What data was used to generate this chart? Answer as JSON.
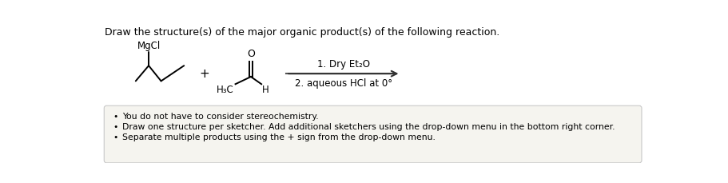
{
  "title": "Draw the structure(s) of the major organic product(s) of the following reaction.",
  "title_fontsize": 9,
  "title_color": "#000000",
  "background_color": "#ffffff",
  "box_color": "#f5f4ef",
  "box_edge_color": "#c8c8c8",
  "bullet_points": [
    "You do not have to consider stereochemistry.",
    "Draw one structure per sketcher. Add additional sketchers using the drop-down menu in the bottom right corner.",
    "Separate multiple products using the + sign from the drop-down menu."
  ],
  "bullet_fontsize": 7.8,
  "reagent1_label": "1. Dry Et₂O",
  "reagent2_label": "2. aqueous HCl at 0°",
  "plus_sign": "+",
  "MgCl_label": "MgCl",
  "H3C_label": "H₃C",
  "H_label": "H",
  "O_label": "O",
  "bond_lw": 1.4,
  "bond_color": "#000000"
}
